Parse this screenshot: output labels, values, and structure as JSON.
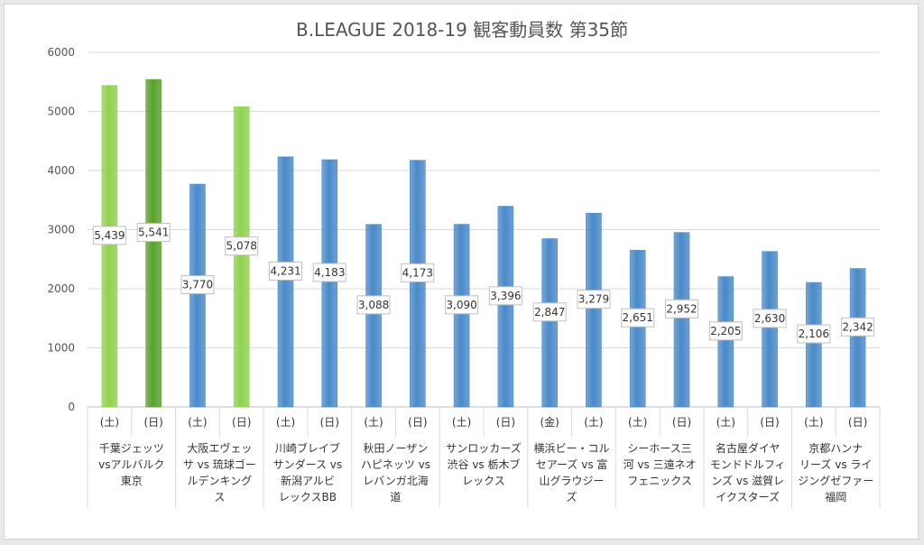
{
  "chart_data": {
    "type": "bar",
    "title": "B.LEAGUE 2018-19 観客動員数 第35節",
    "ylim": [
      0,
      6000
    ],
    "yticks": [
      0,
      1000,
      2000,
      3000,
      4000,
      5000,
      6000
    ],
    "grid": true,
    "categories": [
      {
        "day": "(土)",
        "value": 5439,
        "label": "5,439",
        "color": "#8fd14f"
      },
      {
        "day": "(日)",
        "value": 5541,
        "label": "5,541",
        "color": "#5aa02c"
      },
      {
        "day": "(土)",
        "value": 3770,
        "label": "3,770",
        "color": "#4a89c8"
      },
      {
        "day": "(日)",
        "value": 5078,
        "label": "5,078",
        "color": "#8fd14f"
      },
      {
        "day": "(土)",
        "value": 4231,
        "label": "4,231",
        "color": "#4a89c8"
      },
      {
        "day": "(日)",
        "value": 4183,
        "label": "4,183",
        "color": "#4a89c8"
      },
      {
        "day": "(土)",
        "value": 3088,
        "label": "3,088",
        "color": "#4a89c8"
      },
      {
        "day": "(日)",
        "value": 4173,
        "label": "4,173",
        "color": "#4a89c8"
      },
      {
        "day": "(土)",
        "value": 3090,
        "label": "3,090",
        "color": "#4a89c8"
      },
      {
        "day": "(日)",
        "value": 3396,
        "label": "3,396",
        "color": "#4a89c8"
      },
      {
        "day": "(金)",
        "value": 2847,
        "label": "2,847",
        "color": "#4a89c8"
      },
      {
        "day": "(土)",
        "value": 3279,
        "label": "3,279",
        "color": "#4a89c8"
      },
      {
        "day": "(土)",
        "value": 2651,
        "label": "2,651",
        "color": "#4a89c8"
      },
      {
        "day": "(日)",
        "value": 2952,
        "label": "2,952",
        "color": "#4a89c8"
      },
      {
        "day": "(土)",
        "value": 2205,
        "label": "2,205",
        "color": "#4a89c8"
      },
      {
        "day": "(日)",
        "value": 2630,
        "label": "2,630",
        "color": "#4a89c8"
      },
      {
        "day": "(土)",
        "value": 2106,
        "label": "2,106",
        "color": "#4a89c8"
      },
      {
        "day": "(日)",
        "value": 2342,
        "label": "2,342",
        "color": "#4a89c8"
      }
    ],
    "matchups": [
      [
        "千葉ジェッツ",
        "vsアルバルク",
        "東京"
      ],
      [
        "大阪エヴェッ",
        "サ vs 琉球ゴー",
        "ルデンキング",
        "ス"
      ],
      [
        "川崎ブレイブ",
        "サンダース vs",
        "新潟アルビ",
        "レックスBB"
      ],
      [
        "秋田ノーザン",
        "ハピネッツ vs",
        "レバンガ北海",
        "道"
      ],
      [
        "サンロッカーズ",
        "渋谷 vs 栃木ブ",
        "レックス"
      ],
      [
        "横浜ビー・コル",
        "セアーズ vs 富",
        "山グラウジー",
        "ズ"
      ],
      [
        "シーホース三",
        "河 vs 三遠ネオ",
        "フェニックス"
      ],
      [
        "名古屋ダイヤ",
        "モンドドルフィ",
        "ンズ vs 滋賀レ",
        "イクスターズ"
      ],
      [
        "京都ハンナ",
        "リーズ vs ライ",
        "ジングゼファー",
        "福岡"
      ]
    ]
  }
}
